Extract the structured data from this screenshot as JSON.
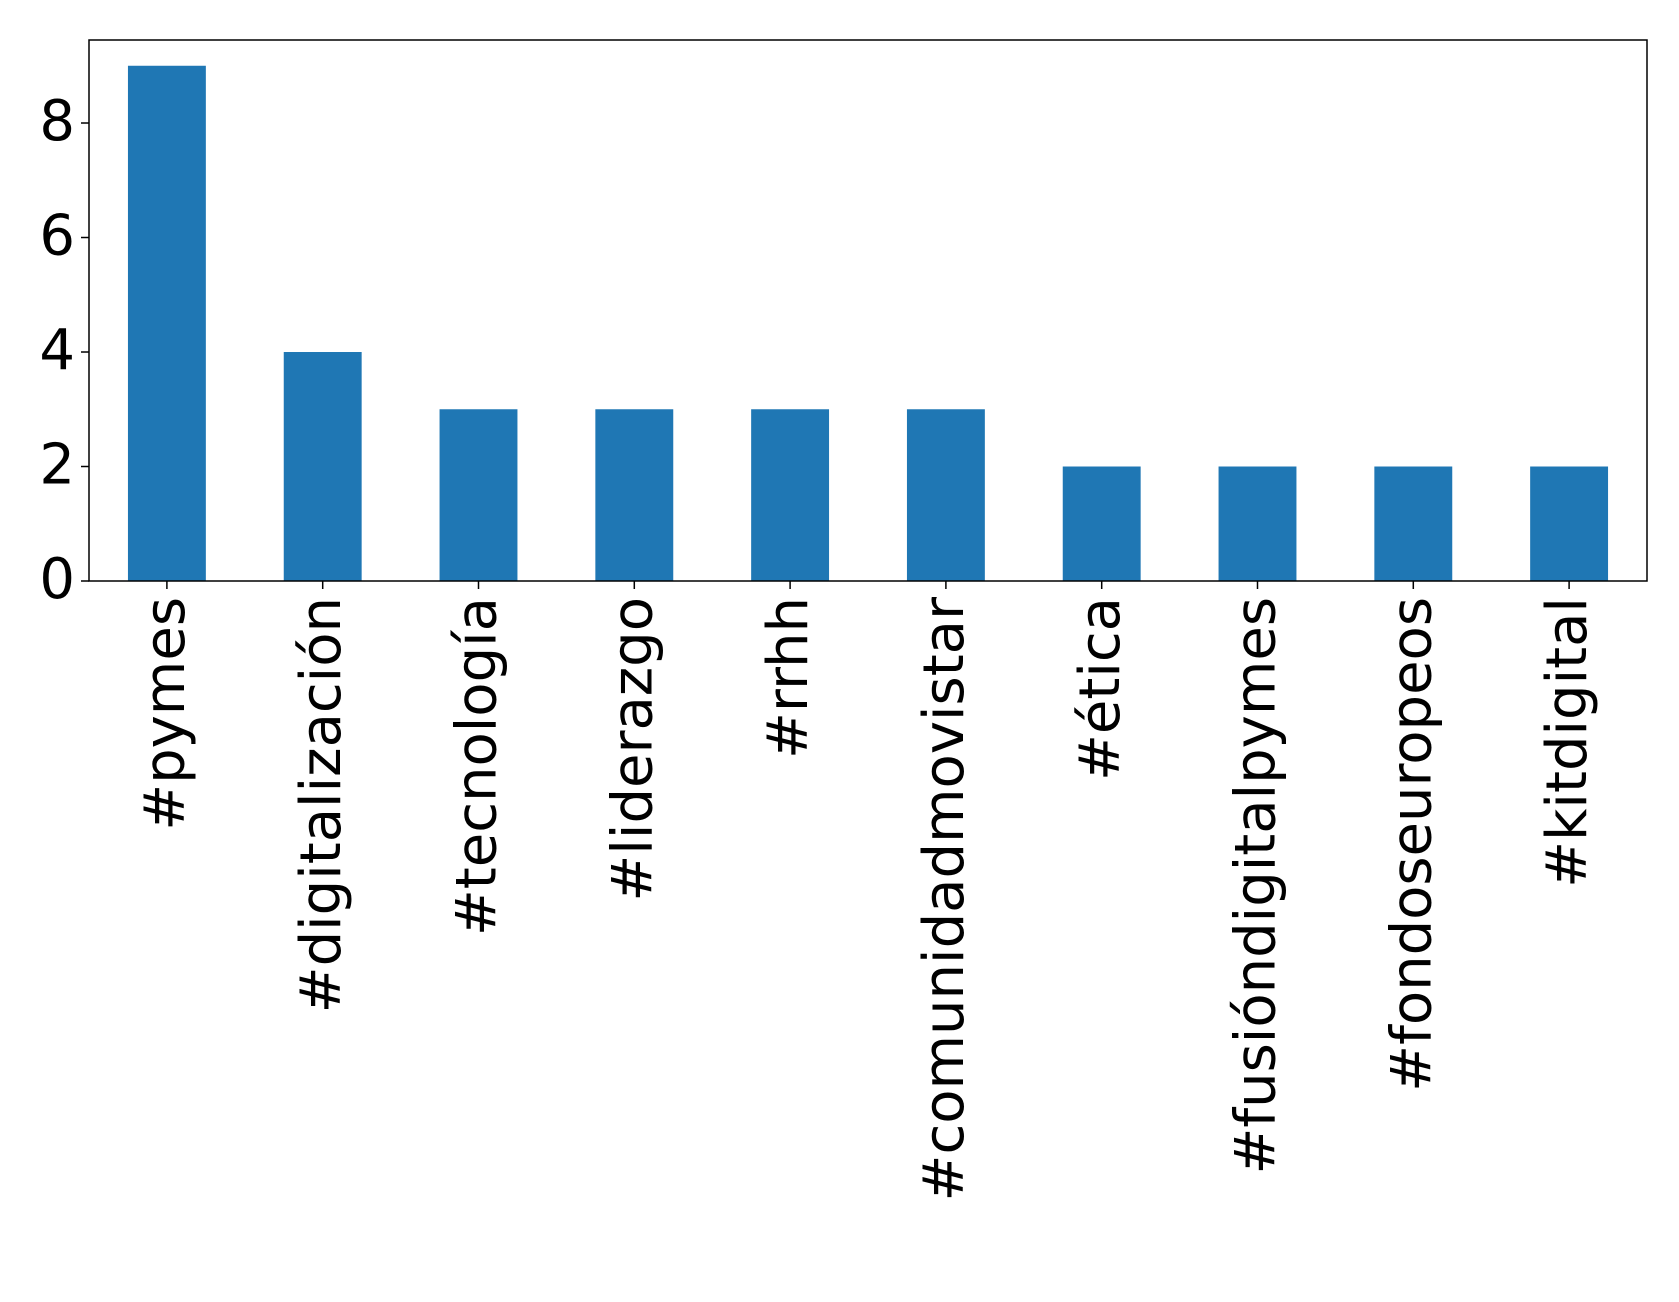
{
  "chart_data": {
    "type": "bar",
    "categories": [
      "#pymes",
      "#digitalización",
      "#tecnología",
      "#liderazgo",
      "#rrhh",
      "#comunidadmovistar",
      "#ética",
      "#fusióndigitalpymes",
      "#fondoseuropeos",
      "#kitdigital"
    ],
    "values": [
      9,
      4,
      3,
      3,
      3,
      3,
      2,
      2,
      2,
      2
    ],
    "color": "#1f77b4",
    "ylim": [
      0,
      9.45
    ],
    "yticks": [
      0,
      2,
      4,
      6,
      8
    ],
    "grid": false
  }
}
